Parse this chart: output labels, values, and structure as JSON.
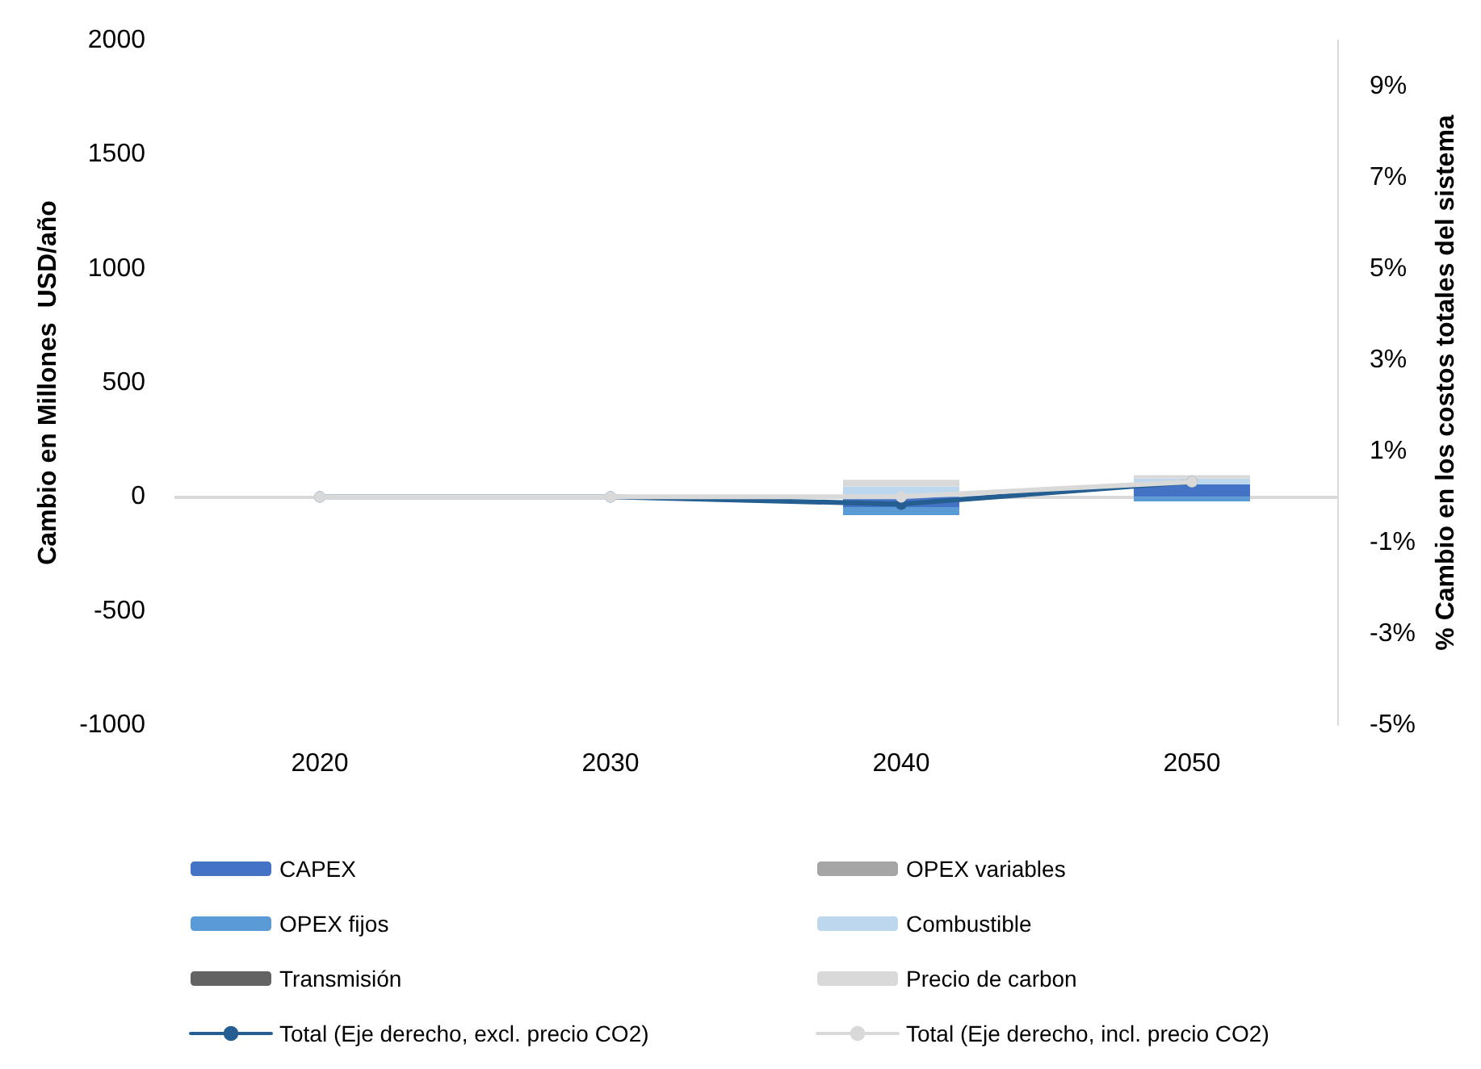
{
  "chart_data": {
    "type": "bar",
    "ylabel": "Cambio en Millones  USD/año",
    "y2label": "% Cambio en los costos totales del sistema",
    "categories": [
      "2020",
      "2030",
      "2040",
      "2050"
    ],
    "ref_lines": [
      {
        "axis": "y",
        "value": 0,
        "color": "#d9d9d9"
      }
    ],
    "stacked": true,
    "legend": "bottom",
    "marker": "circle",
    "ylim": [
      -1000,
      2000
    ],
    "yticks": [
      -1000,
      -500,
      0,
      500,
      1000,
      1500,
      2000
    ],
    "y2lim": [
      -5,
      10
    ],
    "y2ticks": [
      {
        "value": -5,
        "label": "-5%"
      },
      {
        "value": -3,
        "label": "-3%"
      },
      {
        "value": -1,
        "label": "-1%"
      },
      {
        "value": 1,
        "label": "1%"
      },
      {
        "value": 3,
        "label": "3%"
      },
      {
        "value": 5,
        "label": "5%"
      },
      {
        "value": 7,
        "label": "7%"
      },
      {
        "value": 9,
        "label": "9%"
      }
    ],
    "series": [
      {
        "name": "CAPEX",
        "color": "#4472c4",
        "values": [
          0,
          0,
          -45,
          55
        ]
      },
      {
        "name": "OPEX variables",
        "color": "#a5a5a5",
        "values": [
          0,
          0,
          0,
          0
        ]
      },
      {
        "name": "OPEX fijos",
        "color": "#5b9bd5",
        "values": [
          0,
          0,
          -35,
          -20
        ]
      },
      {
        "name": "Combustible",
        "color": "#bdd7ee",
        "values": [
          0,
          0,
          45,
          25
        ]
      },
      {
        "name": "Transmisión",
        "color": "#636363",
        "values": [
          0,
          0,
          0,
          0
        ]
      },
      {
        "name": "Precio de carbon",
        "color": "#d9d9d9",
        "values": [
          0,
          0,
          30,
          15
        ]
      },
      {
        "name": "Total (Eje derecho, excl. precio CO2)",
        "type": "line",
        "axis": "y2",
        "color": "#255e91",
        "values": [
          0,
          0,
          -0.16,
          0.33
        ]
      },
      {
        "name": "Total (Eje derecho, incl. precio CO2)",
        "type": "line",
        "axis": "y2",
        "color": "#d9d9d9",
        "values": [
          0,
          0,
          0,
          0.33
        ]
      }
    ]
  }
}
